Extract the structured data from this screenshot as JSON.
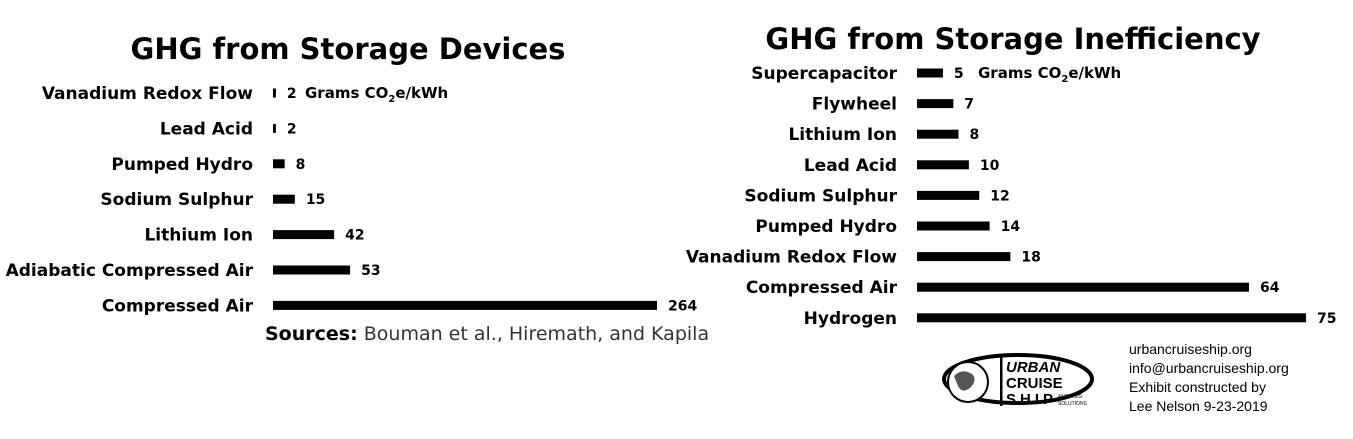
{
  "chart_data": [
    {
      "type": "bar",
      "orientation": "horizontal",
      "title": "GHG from Storage Devices",
      "unit_label": {
        "prefix": "Grams CO",
        "sub": "2",
        "suffix": "e/kWh"
      },
      "categories": [
        "Vanadium Redox Flow",
        "Lead Acid",
        "Pumped Hydro",
        "Sodium Sulphur",
        "Lithium Ion",
        "Adiabatic Compressed Air",
        "Compressed Air"
      ],
      "values": [
        2,
        2,
        8,
        15,
        42,
        53,
        264
      ],
      "color": "#000000"
    },
    {
      "type": "bar",
      "orientation": "horizontal",
      "title": "GHG from Storage Inefficiency",
      "unit_label": {
        "prefix": "Grams CO",
        "sub": "2",
        "suffix": "e/kWh"
      },
      "categories": [
        "Supercapacitor",
        "Flywheel",
        "Lithium Ion",
        "Lead Acid",
        "Sodium Sulphur",
        "Pumped Hydro",
        "Vanadium Redox Flow",
        "Compressed Air",
        "Hydrogen"
      ],
      "values": [
        5,
        7,
        8,
        10,
        12,
        14,
        18,
        64,
        75
      ],
      "color": "#000000"
    }
  ],
  "sources": {
    "label": "Sources:",
    "text": " Bouman et al., Hiremath, and Kapila"
  },
  "contact": {
    "website": "urbancruiseship.org",
    "email": "info@urbancruiseship.org",
    "credit_line1": "Exhibit constructed by",
    "credit_line2": "Lee Nelson 9-23-2019"
  },
  "logo": {
    "line1": "URBAN",
    "line2": "CRUISE",
    "line3": "SHIP",
    "tag1": "ANALYSIS",
    "tag2": "SOLUTIONS"
  }
}
